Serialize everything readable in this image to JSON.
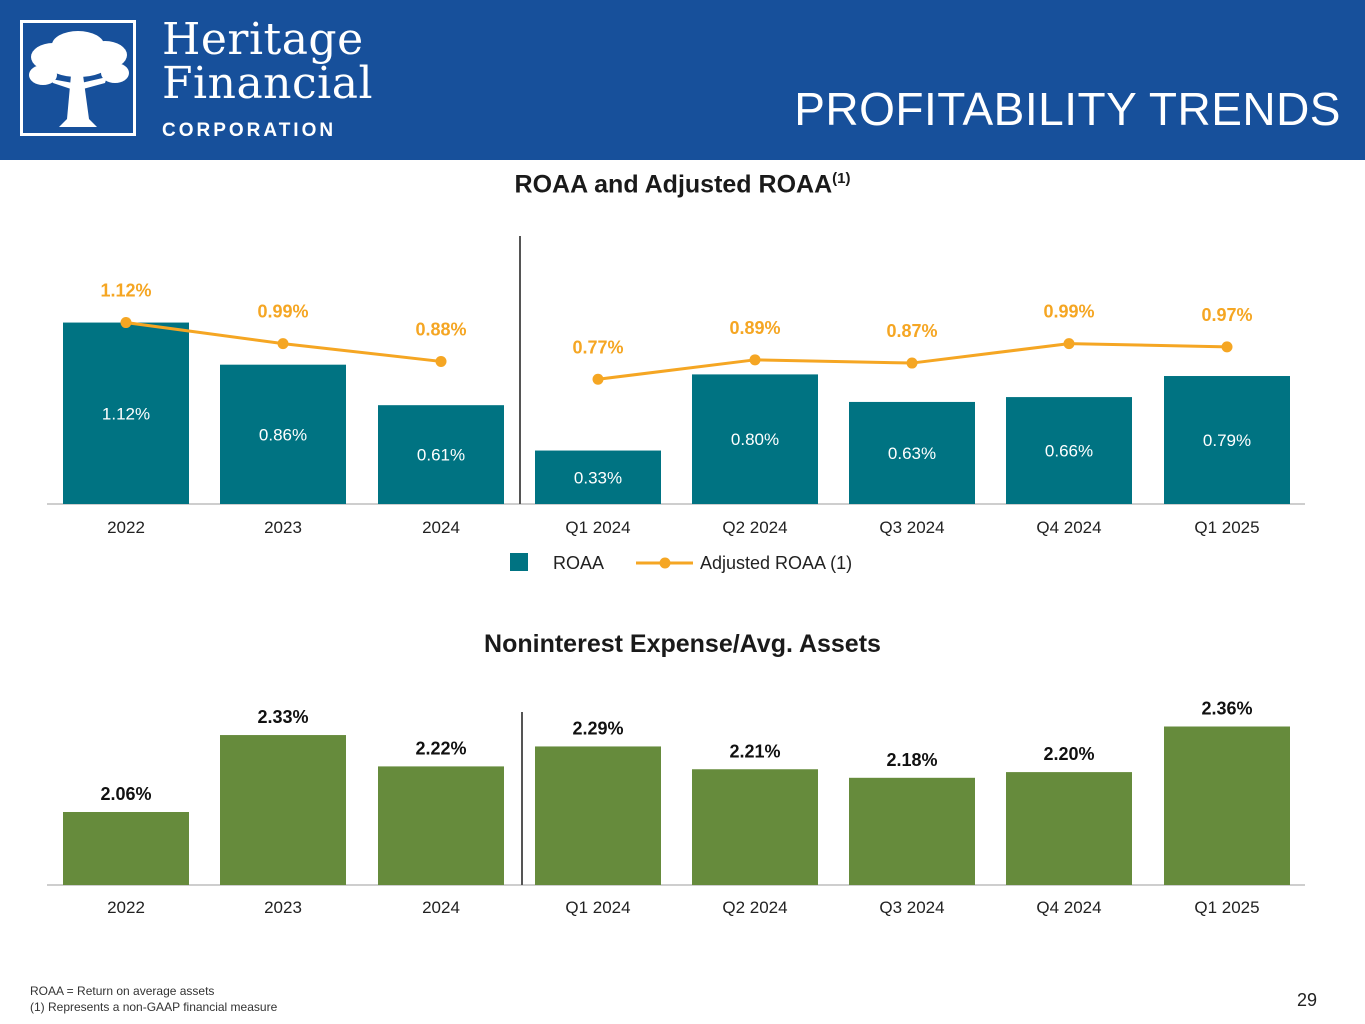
{
  "header": {
    "logo_line1": "Heritage",
    "logo_line2": "Financial",
    "logo_line3": "CORPORATION",
    "page_title": "PROFITABILITY TRENDS",
    "background_color": "#17509b"
  },
  "chart_data": [
    {
      "type": "bar",
      "title": "ROAA and Adjusted ROAA",
      "title_superscript": "(1)",
      "categories": [
        "2022",
        "2023",
        "2024",
        "Q1 2024",
        "Q2 2024",
        "Q3 2024",
        "Q4 2024",
        "Q1 2025"
      ],
      "series": [
        {
          "name": "ROAA",
          "type": "bar",
          "color": "#007382",
          "values": [
            1.12,
            0.86,
            0.61,
            0.33,
            0.8,
            0.63,
            0.66,
            0.79
          ],
          "labels": [
            "1.12%",
            "0.86%",
            "0.61%",
            "0.33%",
            "0.80%",
            "0.63%",
            "0.66%",
            "0.79%"
          ]
        },
        {
          "name": "Adjusted ROAA (1)",
          "type": "line",
          "color": "#f5a623",
          "values": [
            1.12,
            0.99,
            0.88,
            0.77,
            0.89,
            0.87,
            0.99,
            0.97
          ],
          "labels": [
            "1.12%",
            "0.99%",
            "0.88%",
            "0.77%",
            "0.89%",
            "0.87%",
            "0.99%",
            "0.97%"
          ]
        }
      ],
      "ylim": [
        0,
        1.3
      ],
      "legend": [
        "ROAA",
        "Adjusted ROAA (1)"
      ],
      "legend_position": "bottom",
      "divider_after_category": "2024"
    },
    {
      "type": "bar",
      "title": "Noninterest Expense/Avg. Assets",
      "categories": [
        "2022",
        "2023",
        "2024",
        "Q1 2024",
        "Q2 2024",
        "Q3 2024",
        "Q4 2024",
        "Q1 2025"
      ],
      "series": [
        {
          "name": "Noninterest Expense/Avg. Assets",
          "type": "bar",
          "color": "#668b3c",
          "values": [
            2.06,
            2.33,
            2.22,
            2.29,
            2.21,
            2.18,
            2.2,
            2.36
          ],
          "labels": [
            "2.06%",
            "2.33%",
            "2.22%",
            "2.29%",
            "2.21%",
            "2.18%",
            "2.20%",
            "2.36%"
          ]
        }
      ],
      "ylim": [
        1.8,
        2.4
      ],
      "divider_after_category": "2024"
    }
  ],
  "footnotes": [
    "ROAA = Return on average assets",
    "(1) Represents a non-GAAP financial measure"
  ],
  "page_number": "29"
}
